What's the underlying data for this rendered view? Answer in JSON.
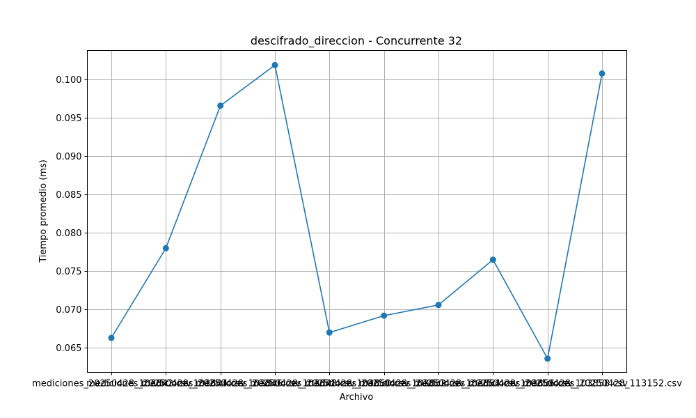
{
  "chart_data": {
    "type": "line",
    "title": "descifrado_direccion - Concurrente 32",
    "xlabel": "Archivo",
    "ylabel": "Tiempo promedio (ms)",
    "categories": [
      "mediciones_20250428_103842.csv",
      "mediciones_20250428_103844.csv",
      "mediciones_20250428_103846.csv",
      "mediciones_20250428_103848.csv",
      "mediciones_20250428_103850.csv",
      "mediciones_20250428_103852.csv",
      "mediciones_20250428_103854.csv",
      "mediciones_20250428_103856.csv",
      "mediciones_20250428_103858.csv",
      "mediciones_20250428_113152.csv"
    ],
    "series": [
      {
        "values": [
          0.0663,
          0.078,
          0.0966,
          0.1019,
          0.067,
          0.0692,
          0.0706,
          0.0765,
          0.0636,
          0.1008
        ],
        "color": "#1f77b4"
      }
    ],
    "ylim": [
      0.0618,
      0.1038
    ],
    "yticks": [
      "0.065",
      "0.070",
      "0.075",
      "0.080",
      "0.085",
      "0.090",
      "0.095",
      "0.100"
    ],
    "grid": true
  }
}
